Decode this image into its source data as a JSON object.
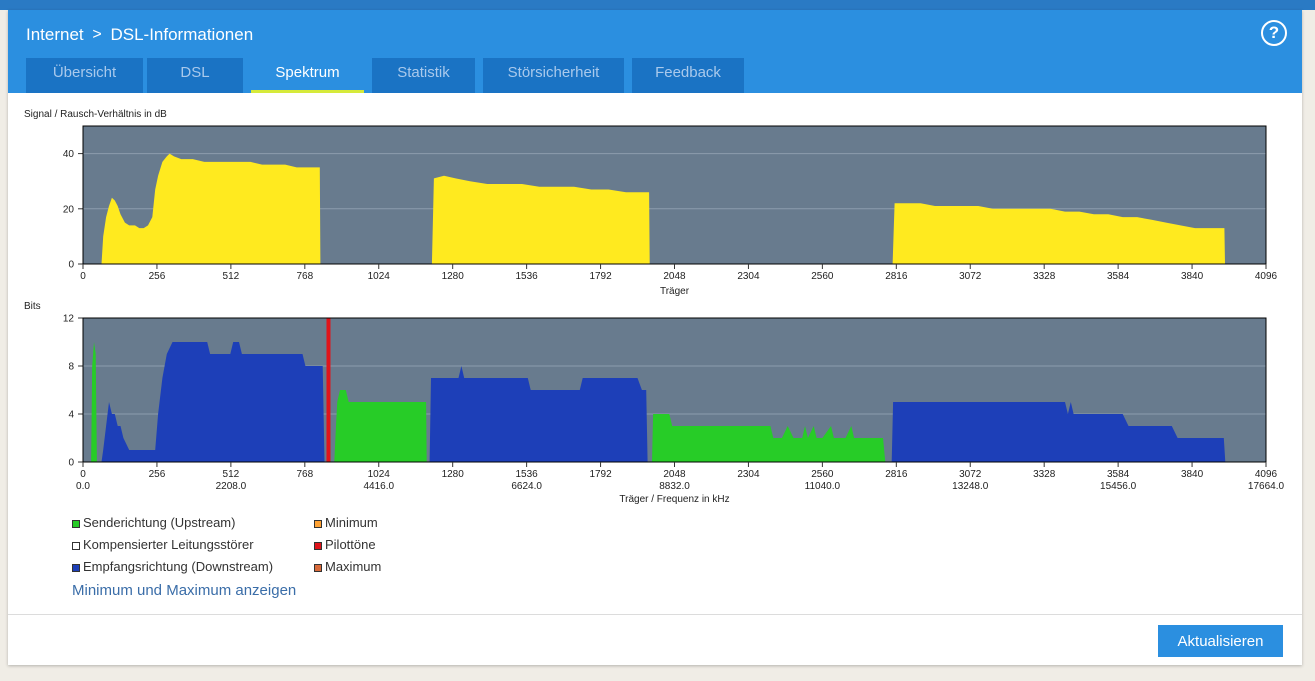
{
  "header": {
    "breadcrumb_parent": "Internet",
    "breadcrumb_separator": ">",
    "breadcrumb_current": "DSL-Informationen",
    "help_label": "?"
  },
  "tabs": [
    {
      "label": "Übersicht"
    },
    {
      "label": "DSL"
    },
    {
      "label": "Spektrum"
    },
    {
      "label": "Statistik"
    },
    {
      "label": "Störsicherheit"
    },
    {
      "label": "Feedback"
    }
  ],
  "active_tab": "Spektrum",
  "colors": {
    "plot_bg": "#687b8e",
    "snr": "#ffea1f",
    "upstream": "#27cc27",
    "downstream": "#1d3fb8",
    "pilot": "#e0141b",
    "minimum": "#ffa233",
    "maximum": "#d96a3a",
    "compensated": "#ffffff"
  },
  "chart_data": [
    {
      "type": "area",
      "title": "Signal / Rausch-Verhältnis in dB",
      "xlabel": "Träger",
      "xlim": [
        0,
        4096
      ],
      "ylim": [
        0,
        50
      ],
      "yticks": [
        0,
        20,
        40
      ],
      "xticks": [
        0,
        256,
        512,
        768,
        1024,
        1280,
        1536,
        1792,
        2048,
        2304,
        2560,
        2816,
        3072,
        3328,
        3584,
        3840,
        4096
      ],
      "series": [
        {
          "name": "SNR",
          "color": "#ffea1f",
          "points": [
            [
              64,
              0
            ],
            [
              70,
              10
            ],
            [
              80,
              17
            ],
            [
              90,
              21
            ],
            [
              100,
              24
            ],
            [
              110,
              23
            ],
            [
              120,
              21
            ],
            [
              130,
              18
            ],
            [
              145,
              15
            ],
            [
              160,
              14
            ],
            [
              180,
              14
            ],
            [
              195,
              13
            ],
            [
              210,
              13
            ],
            [
              225,
              14
            ],
            [
              240,
              17
            ],
            [
              250,
              27
            ],
            [
              260,
              32
            ],
            [
              275,
              37
            ],
            [
              290,
              39
            ],
            [
              300,
              40
            ],
            [
              315,
              39
            ],
            [
              340,
              38
            ],
            [
              380,
              38
            ],
            [
              420,
              37
            ],
            [
              460,
              37
            ],
            [
              500,
              37
            ],
            [
              540,
              37
            ],
            [
              580,
              37
            ],
            [
              620,
              36
            ],
            [
              660,
              36
            ],
            [
              700,
              36
            ],
            [
              740,
              35
            ],
            [
              780,
              35
            ],
            [
              810,
              35
            ],
            [
              820,
              35
            ],
            [
              822,
              0
            ],
            [
              1208,
              0
            ],
            [
              1215,
              31
            ],
            [
              1250,
              32
            ],
            [
              1290,
              31
            ],
            [
              1340,
              30
            ],
            [
              1400,
              29
            ],
            [
              1460,
              29
            ],
            [
              1520,
              29
            ],
            [
              1580,
              28
            ],
            [
              1640,
              28
            ],
            [
              1700,
              28
            ],
            [
              1760,
              27
            ],
            [
              1820,
              27
            ],
            [
              1880,
              26
            ],
            [
              1950,
              26
            ],
            [
              1960,
              26
            ],
            [
              1962,
              0
            ],
            [
              2803,
              0
            ],
            [
              2810,
              22
            ],
            [
              2850,
              22
            ],
            [
              2900,
              22
            ],
            [
              2950,
              21
            ],
            [
              3000,
              21
            ],
            [
              3050,
              21
            ],
            [
              3100,
              21
            ],
            [
              3150,
              20
            ],
            [
              3200,
              20
            ],
            [
              3250,
              20
            ],
            [
              3300,
              20
            ],
            [
              3350,
              20
            ],
            [
              3400,
              19
            ],
            [
              3450,
              19
            ],
            [
              3500,
              18
            ],
            [
              3550,
              18
            ],
            [
              3600,
              17
            ],
            [
              3650,
              17
            ],
            [
              3700,
              16
            ],
            [
              3750,
              15
            ],
            [
              3800,
              14
            ],
            [
              3850,
              13
            ],
            [
              3900,
              13
            ],
            [
              3952,
              13
            ],
            [
              3954,
              0
            ]
          ]
        }
      ]
    },
    {
      "type": "area",
      "title": "Bits",
      "xlabel": "Träger / Frequenz in kHz",
      "xlim": [
        0,
        4096
      ],
      "ylim": [
        0,
        12
      ],
      "yticks": [
        0,
        4,
        8,
        12
      ],
      "xticks": [
        0,
        256,
        512,
        768,
        1024,
        1280,
        1536,
        1792,
        2048,
        2304,
        2560,
        2816,
        3072,
        3328,
        3584,
        3840,
        4096
      ],
      "freq_ticks": [
        {
          "x": 0,
          "label": "0.0"
        },
        {
          "x": 512,
          "label": "2208.0"
        },
        {
          "x": 1024,
          "label": "4416.0"
        },
        {
          "x": 1536,
          "label": "6624.0"
        },
        {
          "x": 2048,
          "label": "8832.0"
        },
        {
          "x": 2560,
          "label": "11040.0"
        },
        {
          "x": 3072,
          "label": "13248.0"
        },
        {
          "x": 3584,
          "label": "15456.0"
        },
        {
          "x": 4096,
          "label": "17664.0"
        }
      ],
      "series": [
        {
          "name": "Senderichtung (Upstream)",
          "color": "#27cc27",
          "points": [
            [
              28,
              0
            ],
            [
              32,
              8
            ],
            [
              38,
              10
            ],
            [
              44,
              9
            ],
            [
              48,
              0
            ],
            [
              870,
              0
            ],
            [
              874,
              2
            ],
            [
              880,
              5
            ],
            [
              890,
              6
            ],
            [
              910,
              6
            ],
            [
              920,
              5
            ],
            [
              940,
              5
            ],
            [
              1000,
              5
            ],
            [
              1060,
              5
            ],
            [
              1110,
              5
            ],
            [
              1188,
              5
            ],
            [
              1190,
              0
            ],
            [
              1970,
              0
            ],
            [
              1974,
              4
            ],
            [
              2030,
              4
            ],
            [
              2040,
              3
            ],
            [
              2120,
              3
            ],
            [
              2200,
              3
            ],
            [
              2280,
              3
            ],
            [
              2380,
              3
            ],
            [
              2390,
              2
            ],
            [
              2420,
              2
            ],
            [
              2440,
              3
            ],
            [
              2460,
              2
            ],
            [
              2490,
              2
            ],
            [
              2500,
              3
            ],
            [
              2510,
              2
            ],
            [
              2530,
              3
            ],
            [
              2540,
              2
            ],
            [
              2560,
              2
            ],
            [
              2590,
              3
            ],
            [
              2600,
              2
            ],
            [
              2620,
              2
            ],
            [
              2640,
              2
            ],
            [
              2660,
              3
            ],
            [
              2670,
              2
            ],
            [
              2720,
              2
            ],
            [
              2770,
              2
            ],
            [
              2778,
              0
            ]
          ]
        },
        {
          "name": "Empfangsrichtung (Downstream)",
          "color": "#1d3fb8",
          "points": [
            [
              64,
              0
            ],
            [
              70,
              1
            ],
            [
              80,
              3
            ],
            [
              90,
              5
            ],
            [
              100,
              4
            ],
            [
              110,
              4
            ],
            [
              120,
              3
            ],
            [
              130,
              3
            ],
            [
              140,
              2
            ],
            [
              160,
              1
            ],
            [
              250,
              1
            ],
            [
              260,
              4
            ],
            [
              275,
              7
            ],
            [
              290,
              9
            ],
            [
              310,
              10
            ],
            [
              430,
              10
            ],
            [
              440,
              9
            ],
            [
              510,
              9
            ],
            [
              520,
              10
            ],
            [
              540,
              10
            ],
            [
              550,
              9
            ],
            [
              640,
              9
            ],
            [
              760,
              9
            ],
            [
              770,
              8
            ],
            [
              830,
              8
            ],
            [
              836,
              0
            ],
            [
              1200,
              0
            ],
            [
              1205,
              7
            ],
            [
              1300,
              7
            ],
            [
              1310,
              8
            ],
            [
              1320,
              7
            ],
            [
              1540,
              7
            ],
            [
              1550,
              6
            ],
            [
              1720,
              6
            ],
            [
              1730,
              7
            ],
            [
              1920,
              7
            ],
            [
              1935,
              6
            ],
            [
              1950,
              6
            ],
            [
              1955,
              0
            ],
            [
              2800,
              0
            ],
            [
              2805,
              5
            ],
            [
              3400,
              5
            ],
            [
              3410,
              4
            ],
            [
              3420,
              5
            ],
            [
              3430,
              4
            ],
            [
              3470,
              4
            ],
            [
              3600,
              4
            ],
            [
              3620,
              3
            ],
            [
              3770,
              3
            ],
            [
              3790,
              2
            ],
            [
              3950,
              2
            ],
            [
              3955,
              0
            ]
          ]
        },
        {
          "name": "Pilottöne",
          "color": "#e0141b",
          "points": [
            [
              850,
              0
            ],
            [
              850,
              12
            ]
          ]
        }
      ]
    }
  ],
  "legend": [
    {
      "label": "Senderichtung (Upstream)",
      "color": "#27cc27"
    },
    {
      "label": "Kompensierter Leitungsstörer",
      "color": "#ffffff"
    },
    {
      "label": "Empfangsrichtung (Downstream)",
      "color": "#1d3fb8"
    },
    {
      "label": "Minimum",
      "color": "#ffa233"
    },
    {
      "label": "Pilottöne",
      "color": "#e0141b"
    },
    {
      "label": "Maximum",
      "color": "#d96a3a"
    }
  ],
  "minmax_link": "Minimum und Maximum anzeigen",
  "refresh_button": "Aktualisieren"
}
